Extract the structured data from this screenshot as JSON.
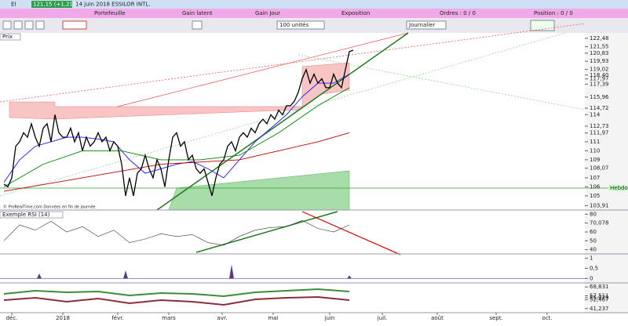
{
  "header": {
    "symbol": "EI",
    "quote": "121,15 (+1,21%)",
    "title": "14 juin 2018 ESSILOR INTL."
  },
  "stats": [
    "Portefeuille",
    "Gain latent",
    "Gain Jour",
    "Exposition",
    "Ordres : 0 / 0",
    "Position : 0 / 0"
  ],
  "toolbar": {
    "quantity": "100 unités",
    "period": "Journalier"
  },
  "price_panel": {
    "label": "Prix",
    "credit": "© ProRealTime.com Données en fin de journée",
    "weekly_label": "Hebdo",
    "xlim": [
      -1,
      148
    ],
    "ylim": [
      103.6,
      122.9
    ],
    "yticks": [
      {
        "value": 122.48,
        "label": "122,48"
      },
      {
        "value": 121.55,
        "label": "121,55"
      },
      {
        "value": 120.83,
        "label": "120,83"
      },
      {
        "value": 119.93,
        "label": "119,93"
      },
      {
        "value": 119.02,
        "label": "119,02"
      },
      {
        "value": 118.4,
        "label": "118,40"
      },
      {
        "value": 117.97,
        "label": "117,97"
      },
      {
        "value": 117.39,
        "label": "117,39"
      },
      {
        "value": 115.96,
        "label": "115,96"
      },
      {
        "value": 114.72,
        "label": "114,72"
      },
      114,
      {
        "value": 112.73,
        "label": "112,73"
      },
      {
        "value": 111.97,
        "label": "111,97"
      },
      111,
      110,
      109,
      {
        "value": 108.07,
        "label": "108,07"
      },
      107,
      106,
      105,
      {
        "value": 103.91,
        "label": "103,91"
      }
    ],
    "price": {
      "color": "#000000",
      "values": [
        106.3,
        106,
        107,
        110.5,
        111,
        112,
        111.5,
        113,
        111.5,
        110.5,
        112.5,
        113,
        111,
        114,
        112,
        111.5,
        111.5,
        112.5,
        111,
        112,
        110,
        111.5,
        110.5,
        111,
        112,
        111,
        111.5,
        110,
        111,
        110.5,
        108.5,
        105,
        107,
        105,
        107.5,
        108,
        109.5,
        108,
        107,
        109,
        108,
        106,
        109,
        111.5,
        112,
        110.5,
        111,
        109,
        109.5,
        108,
        107.5,
        108,
        106.5,
        105,
        107,
        108.5,
        109,
        110.5,
        111,
        110,
        111.5,
        112,
        111.5,
        112.5,
        112,
        113,
        113.5,
        113,
        114,
        113.5,
        114.5,
        114,
        115,
        115,
        115.5,
        116.5,
        118,
        119,
        117.5,
        118.5,
        117.5,
        118,
        117,
        117,
        118.5,
        117.5,
        117,
        119,
        121,
        121.15
      ]
    },
    "averages": [
      {
        "color": "#1a1aff",
        "x": [
          0,
          4,
          8,
          12,
          16,
          20,
          24,
          28,
          32,
          36,
          40,
          44,
          48,
          52,
          56,
          60,
          64,
          68,
          72,
          76,
          80,
          84,
          88
        ],
        "values": [
          106.5,
          109,
          110.5,
          111,
          111.5,
          111.5,
          111.3,
          111,
          109,
          107.5,
          108,
          108.5,
          108.8,
          108,
          107,
          109,
          111,
          112.5,
          114,
          116,
          117.5,
          117.5,
          118.5
        ]
      },
      {
        "color": "#008000",
        "x": [
          0,
          10,
          20,
          30,
          40,
          50,
          60,
          70,
          80,
          88
        ],
        "values": [
          106,
          108.5,
          110,
          110,
          109,
          109,
          109.5,
          112,
          115,
          117
        ]
      },
      {
        "color": "#c00000",
        "x": [
          0,
          20,
          40,
          60,
          70,
          80,
          88
        ],
        "values": [
          105.5,
          107,
          108.5,
          109,
          110,
          111,
          112
        ]
      }
    ]
  },
  "rsi_panel": {
    "label": "Exemple RSI (14)",
    "ylim": [
      37,
      83
    ],
    "yticks": [
      80,
      {
        "value": 70.078,
        "label": "70,078"
      },
      60,
      50,
      40
    ],
    "color": "#333333",
    "x": [
      0,
      4,
      8,
      12,
      16,
      20,
      24,
      28,
      32,
      36,
      40,
      44,
      48,
      52,
      56,
      60,
      64,
      68,
      72,
      76,
      80,
      84,
      88
    ],
    "values": [
      50,
      68,
      62,
      72,
      60,
      66,
      55,
      62,
      48,
      52,
      58,
      55,
      57,
      48,
      45,
      55,
      62,
      65,
      66,
      73,
      64,
      60,
      68
    ]
  },
  "osc_panel": {
    "ylim": [
      -0.1,
      1.1
    ],
    "yticks": [
      1,
      {
        "value": 0.5,
        "label": "0,5"
      },
      0
    ],
    "color": "#5a3a8a",
    "x": [
      9,
      31,
      58,
      88
    ],
    "values": [
      0.25,
      0.4,
      0.7,
      0.15
    ]
  },
  "band_panel": {
    "ylim": [
      38,
      72
    ],
    "yticks": [
      {
        "value": 68.831,
        "label": "68,831"
      },
      {
        "value": 57.511,
        "label": "57,511"
      },
      {
        "value": 55.029,
        "label": "55,029"
      },
      {
        "value": 52.467,
        "label": "52,467"
      },
      {
        "value": 41.237,
        "label": "41,237"
      }
    ],
    "series": [
      {
        "color": "#3c8c3c",
        "x": [
          0,
          8,
          16,
          24,
          32,
          40,
          48,
          56,
          64,
          72,
          80,
          88
        ],
        "values": [
          60,
          64,
          62,
          63,
          58,
          61,
          60,
          57,
          62,
          64,
          66,
          63
        ]
      },
      {
        "color": "#8c2c3c",
        "x": [
          0,
          8,
          16,
          24,
          32,
          40,
          48,
          56,
          64,
          72,
          80,
          88
        ],
        "values": [
          52,
          55,
          50,
          54,
          48,
          52,
          50,
          46,
          53,
          55,
          56,
          52
        ]
      }
    ]
  },
  "x_axis": {
    "labels": [
      {
        "value": 2,
        "label": "déc."
      },
      {
        "value": 15,
        "label": "2018"
      },
      {
        "value": 29,
        "label": "févr."
      },
      {
        "value": 42,
        "label": "mars"
      },
      {
        "value": 55.6,
        "label": "avr."
      },
      {
        "value": 68.6,
        "label": "mai"
      },
      {
        "value": 83,
        "label": "juin"
      },
      {
        "value": 96.4,
        "label": "juil."
      },
      {
        "value": 110.4,
        "label": "août"
      },
      {
        "value": 125.4,
        "label": "sept."
      },
      {
        "value": 138.4,
        "label": "oct."
      }
    ]
  }
}
